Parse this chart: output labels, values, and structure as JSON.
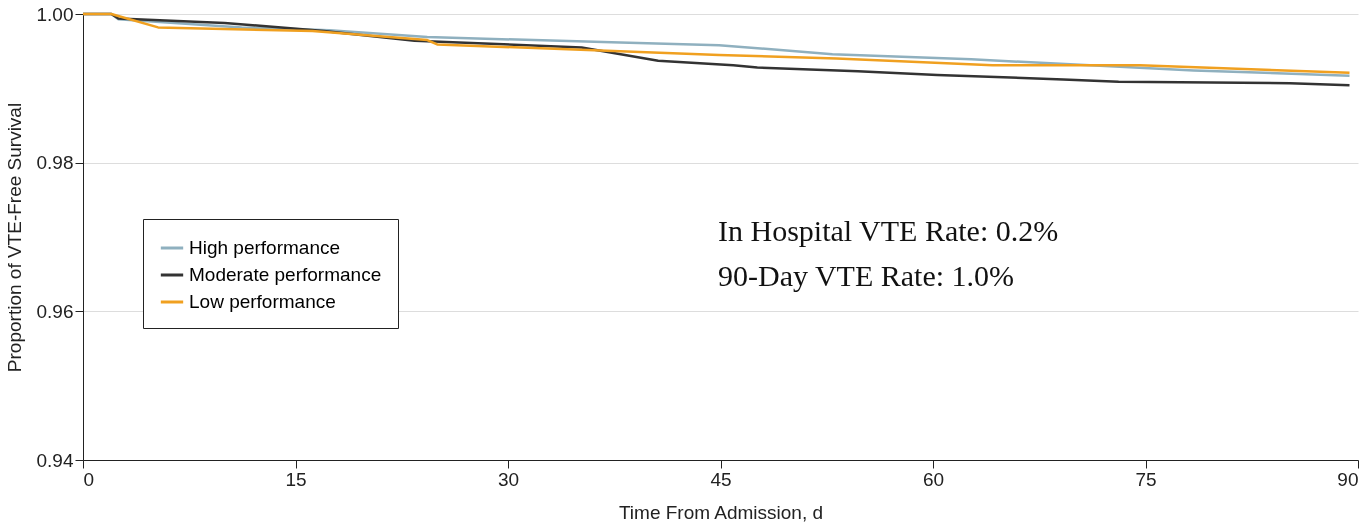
{
  "chart_data": {
    "type": "line",
    "xlabel": "Time From Admission, d",
    "ylabel": "Proportion of VTE-Free Survival",
    "xlim": [
      0,
      90
    ],
    "xticks": [
      0,
      15,
      30,
      45,
      60,
      75,
      90
    ],
    "ylim": [
      0.94,
      1.0
    ],
    "yticks": [
      0.94,
      0.96,
      0.98,
      {
        "value": 1.0,
        "label": "1.00"
      }
    ],
    "grid": "y",
    "legend": "bottom left",
    "annotations": [
      "In Hospital VTE Rate: 0.2%",
      "90-Day VTE Rate:      1.0%"
    ],
    "series": [
      {
        "name": "High performance",
        "color": "#8fb0bf",
        "x": [
          0,
          2,
          2.5,
          11.2,
          17.4,
          24.3,
          37.3,
          44.9,
          52.9,
          62.7,
          78.4,
          89.4
        ],
        "values": [
          1.0,
          1.0,
          0.9993,
          0.9982,
          0.9978,
          0.9969,
          0.9962,
          0.9958,
          0.9946,
          0.9939,
          0.9924,
          0.9917
        ]
      },
      {
        "name": "Moderate performance",
        "color": "#333333",
        "x": [
          0,
          2,
          2.5,
          10,
          17,
          23.4,
          35.2,
          40.6,
          45.9,
          47.6,
          54.7,
          60.3,
          69.2,
          73.1,
          85.2,
          89.4
        ],
        "values": [
          1.0,
          1.0,
          0.9994,
          0.9988,
          0.9977,
          0.9964,
          0.9955,
          0.9937,
          0.9931,
          0.9928,
          0.9923,
          0.9918,
          0.9912,
          0.9909,
          0.9907,
          0.9904
        ]
      },
      {
        "name": "Low performance",
        "color": "#f0a020",
        "x": [
          0,
          2,
          5.3,
          16.2,
          24.3,
          25,
          44.9,
          53.2,
          64.2,
          74.6,
          89.4
        ],
        "values": [
          1.0,
          1.0,
          0.9982,
          0.9977,
          0.9965,
          0.9959,
          0.9945,
          0.994,
          0.9931,
          0.9931,
          0.9921
        ]
      }
    ]
  }
}
